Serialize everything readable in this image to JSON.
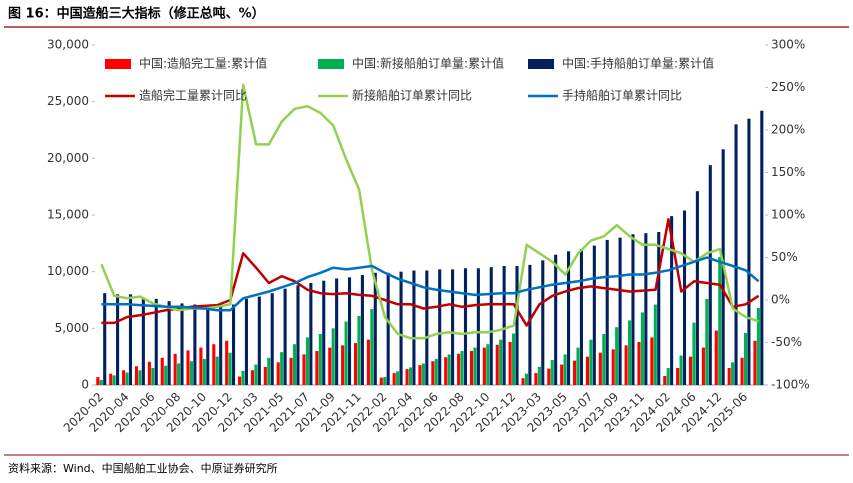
{
  "chart_data": {
    "type": "bar",
    "title": "图 16：中国造船三大指标（修正总吨、%）",
    "source": "资料来源：Wind、中国船舶工业协会、中原证券研究所",
    "categories": [
      "2020-02",
      null,
      "2020-04",
      null,
      "2020-06",
      null,
      "2020-08",
      null,
      "2020-10",
      null,
      "2020-12",
      null,
      "2021-03",
      null,
      "2021-05",
      null,
      "2021-07",
      null,
      "2021-09",
      null,
      "2021-11",
      null,
      "2022-02",
      null,
      "2022-04",
      null,
      "2022-06",
      null,
      "2022-08",
      null,
      "2022-10",
      null,
      "2022-12",
      null,
      "2023-03",
      null,
      "2023-05",
      null,
      "2023-07",
      null,
      "2023-09",
      null,
      "2023-11",
      null,
      "2024-02",
      null,
      "2024-06",
      null,
      "2024-12",
      null,
      "2025-06",
      null
    ],
    "series": [
      {
        "name": "中国:造船完工量:累计值",
        "type": "bar",
        "color": "#ff0000",
        "values": [
          700,
          1000,
          1300,
          1650,
          2050,
          2400,
          2750,
          3050,
          3300,
          3600,
          3900,
          750,
          1300,
          1600,
          2000,
          2400,
          2700,
          3000,
          3300,
          3500,
          3700,
          4000,
          650,
          1050,
          1400,
          1750,
          2100,
          2450,
          2750,
          3000,
          3300,
          3550,
          3800,
          600,
          1050,
          1450,
          1800,
          2150,
          2500,
          2850,
          3150,
          3500,
          3800,
          4200,
          800,
          1500,
          2500,
          3300,
          4800,
          1500,
          2400,
          3900
        ]
      },
      {
        "name": "中国:新接船舶订单量:累计值",
        "type": "bar",
        "color": "#00b050",
        "values": [
          450,
          850,
          1100,
          1300,
          1500,
          1700,
          1900,
          2100,
          2300,
          2500,
          2850,
          1250,
          1800,
          2400,
          2900,
          3600,
          4200,
          4500,
          5000,
          5600,
          6100,
          6700,
          700,
          1200,
          1550,
          1900,
          2300,
          2700,
          3000,
          3300,
          3600,
          4000,
          4550,
          1000,
          1600,
          2200,
          2700,
          3300,
          4000,
          4500,
          5100,
          5700,
          6400,
          7100,
          1500,
          2600,
          5500,
          7600,
          11300,
          2000,
          4600,
          6800
        ]
      },
      {
        "name": "中国:手持船舶订单量:累计值",
        "type": "bar",
        "color": "#002060",
        "values": [
          8100,
          8000,
          8000,
          7700,
          7600,
          7400,
          7200,
          7100,
          7000,
          6900,
          7100,
          7600,
          7800,
          8100,
          8500,
          8800,
          9000,
          9200,
          9400,
          9500,
          9700,
          9900,
          9900,
          10000,
          10100,
          10100,
          10200,
          10200,
          10300,
          10300,
          10400,
          10500,
          10500,
          10600,
          11000,
          11500,
          11800,
          12000,
          12300,
          12800,
          13000,
          13300,
          13400,
          13500,
          14900,
          15400,
          17100,
          19400,
          20800,
          23000,
          23500,
          24200
        ]
      },
      {
        "name": "造船完工量累计同比",
        "type": "line",
        "axis": "y2",
        "color": "#c00000",
        "values": [
          -27,
          -27,
          -20,
          -18,
          -15,
          -12,
          -10,
          -8,
          -7,
          -6,
          0,
          55,
          38,
          20,
          28,
          22,
          12,
          8,
          7,
          8,
          6,
          5,
          0,
          -5,
          -5,
          -10,
          -8,
          -5,
          -8,
          -6,
          -5,
          -5,
          -5,
          -30,
          -5,
          5,
          10,
          14,
          16,
          14,
          12,
          10,
          11,
          12,
          95,
          10,
          22,
          20,
          18,
          -8,
          -5,
          5
        ]
      },
      {
        "name": "新接船舶订单累计同比",
        "type": "line",
        "axis": "y2",
        "color": "#92d050",
        "values": [
          42,
          5,
          2,
          4,
          -4,
          -8,
          -12,
          -10,
          -10,
          -8,
          -5,
          253,
          183,
          183,
          210,
          225,
          228,
          220,
          205,
          165,
          130,
          35,
          -20,
          -40,
          -45,
          -45,
          -40,
          -38,
          -40,
          -38,
          -38,
          -35,
          -30,
          65,
          55,
          45,
          30,
          55,
          70,
          75,
          88,
          75,
          65,
          65,
          60,
          55,
          45,
          55,
          60,
          -10,
          -20,
          -25
        ]
      },
      {
        "name": "手持船舶订单累计同比",
        "type": "line",
        "axis": "y2",
        "color": "#0070c0",
        "values": [
          -5,
          -5,
          -5,
          -6,
          -7,
          -8,
          -8,
          -9,
          -10,
          -12,
          -12,
          2,
          6,
          10,
          15,
          20,
          27,
          32,
          38,
          36,
          38,
          40,
          32,
          25,
          20,
          15,
          12,
          10,
          8,
          6,
          7,
          8,
          8,
          12,
          15,
          18,
          20,
          22,
          25,
          27,
          28,
          30,
          30,
          32,
          35,
          40,
          45,
          50,
          45,
          40,
          35,
          22
        ]
      }
    ],
    "ylim": [
      0,
      30000
    ],
    "yticks": [
      0,
      {
        "value": 5000,
        "label": "5,000"
      },
      {
        "value": 10000,
        "label": "10,000"
      },
      {
        "value": 15000,
        "label": "15,000"
      },
      {
        "value": 20000,
        "label": "20,000"
      },
      {
        "value": 25000,
        "label": "25,000"
      },
      {
        "value": 30000,
        "label": "30,000"
      }
    ],
    "y2lim": [
      -100,
      300
    ],
    "y2ticks": [
      {
        "value": -100,
        "label": "-100%"
      },
      {
        "value": -50,
        "label": "-50%"
      },
      {
        "value": 0,
        "label": "0%"
      },
      {
        "value": 50,
        "label": "50%"
      },
      {
        "value": 100,
        "label": "100%"
      },
      {
        "value": 150,
        "label": "150%"
      },
      {
        "value": 200,
        "label": "200%"
      },
      {
        "value": 250,
        "label": "250%"
      },
      {
        "value": 300,
        "label": "300%"
      }
    ],
    "grid": false
  }
}
